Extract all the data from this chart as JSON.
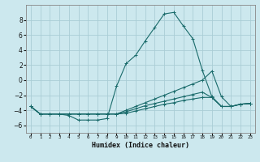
{
  "xlabel": "Humidex (Indice chaleur)",
  "ylabel": "",
  "xlim": [
    -0.5,
    23.5
  ],
  "ylim": [
    -7,
    10
  ],
  "yticks": [
    -6,
    -4,
    -2,
    0,
    2,
    4,
    6,
    8
  ],
  "xtick_labels": [
    "0",
    "1",
    "2",
    "3",
    "4",
    "5",
    "6",
    "7",
    "8",
    "9",
    "10",
    "11",
    "12",
    "13",
    "14",
    "15",
    "16",
    "17",
    "18",
    "19",
    "20",
    "21",
    "22",
    "23"
  ],
  "background_color": "#cce8ee",
  "grid_color": "#aacdd5",
  "line_color": "#1a6b6b",
  "lines": [
    {
      "x": [
        0,
        1,
        2,
        3,
        4,
        5,
        6,
        7,
        8,
        9,
        10,
        11,
        12,
        13,
        14,
        15,
        16,
        17,
        18,
        19,
        20,
        21,
        22,
        23
      ],
      "y": [
        -3.5,
        -4.5,
        -4.5,
        -4.5,
        -4.7,
        -5.3,
        -5.3,
        -5.3,
        -5.1,
        -0.8,
        2.2,
        3.3,
        5.2,
        7.0,
        8.8,
        9.0,
        7.2,
        5.5,
        1.3,
        -2.2,
        -3.5,
        -3.5,
        -3.2,
        -3.1
      ]
    },
    {
      "x": [
        0,
        1,
        2,
        3,
        4,
        5,
        6,
        7,
        8,
        9,
        10,
        11,
        12,
        13,
        14,
        15,
        16,
        17,
        18,
        19,
        20,
        21,
        22,
        23
      ],
      "y": [
        -3.5,
        -4.5,
        -4.5,
        -4.5,
        -4.5,
        -4.5,
        -4.5,
        -4.5,
        -4.5,
        -4.5,
        -4.0,
        -3.5,
        -3.0,
        -2.5,
        -2.0,
        -1.5,
        -1.0,
        -0.5,
        0.0,
        1.2,
        -2.2,
        -3.5,
        -3.2,
        -3.1
      ]
    },
    {
      "x": [
        0,
        1,
        2,
        3,
        4,
        5,
        6,
        7,
        8,
        9,
        10,
        11,
        12,
        13,
        14,
        15,
        16,
        17,
        18,
        19,
        20,
        21,
        22,
        23
      ],
      "y": [
        -3.5,
        -4.5,
        -4.5,
        -4.5,
        -4.5,
        -4.5,
        -4.5,
        -4.5,
        -4.5,
        -4.5,
        -4.2,
        -3.8,
        -3.4,
        -3.1,
        -2.8,
        -2.5,
        -2.2,
        -1.9,
        -1.6,
        -2.3,
        -3.5,
        -3.5,
        -3.2,
        -3.1
      ]
    },
    {
      "x": [
        0,
        1,
        2,
        3,
        4,
        5,
        6,
        7,
        8,
        9,
        10,
        11,
        12,
        13,
        14,
        15,
        16,
        17,
        18,
        19,
        20,
        21,
        22,
        23
      ],
      "y": [
        -3.5,
        -4.5,
        -4.5,
        -4.5,
        -4.5,
        -4.5,
        -4.5,
        -4.5,
        -4.5,
        -4.5,
        -4.4,
        -4.1,
        -3.8,
        -3.5,
        -3.2,
        -3.0,
        -2.7,
        -2.5,
        -2.3,
        -2.3,
        -3.5,
        -3.5,
        -3.2,
        -3.1
      ]
    }
  ]
}
